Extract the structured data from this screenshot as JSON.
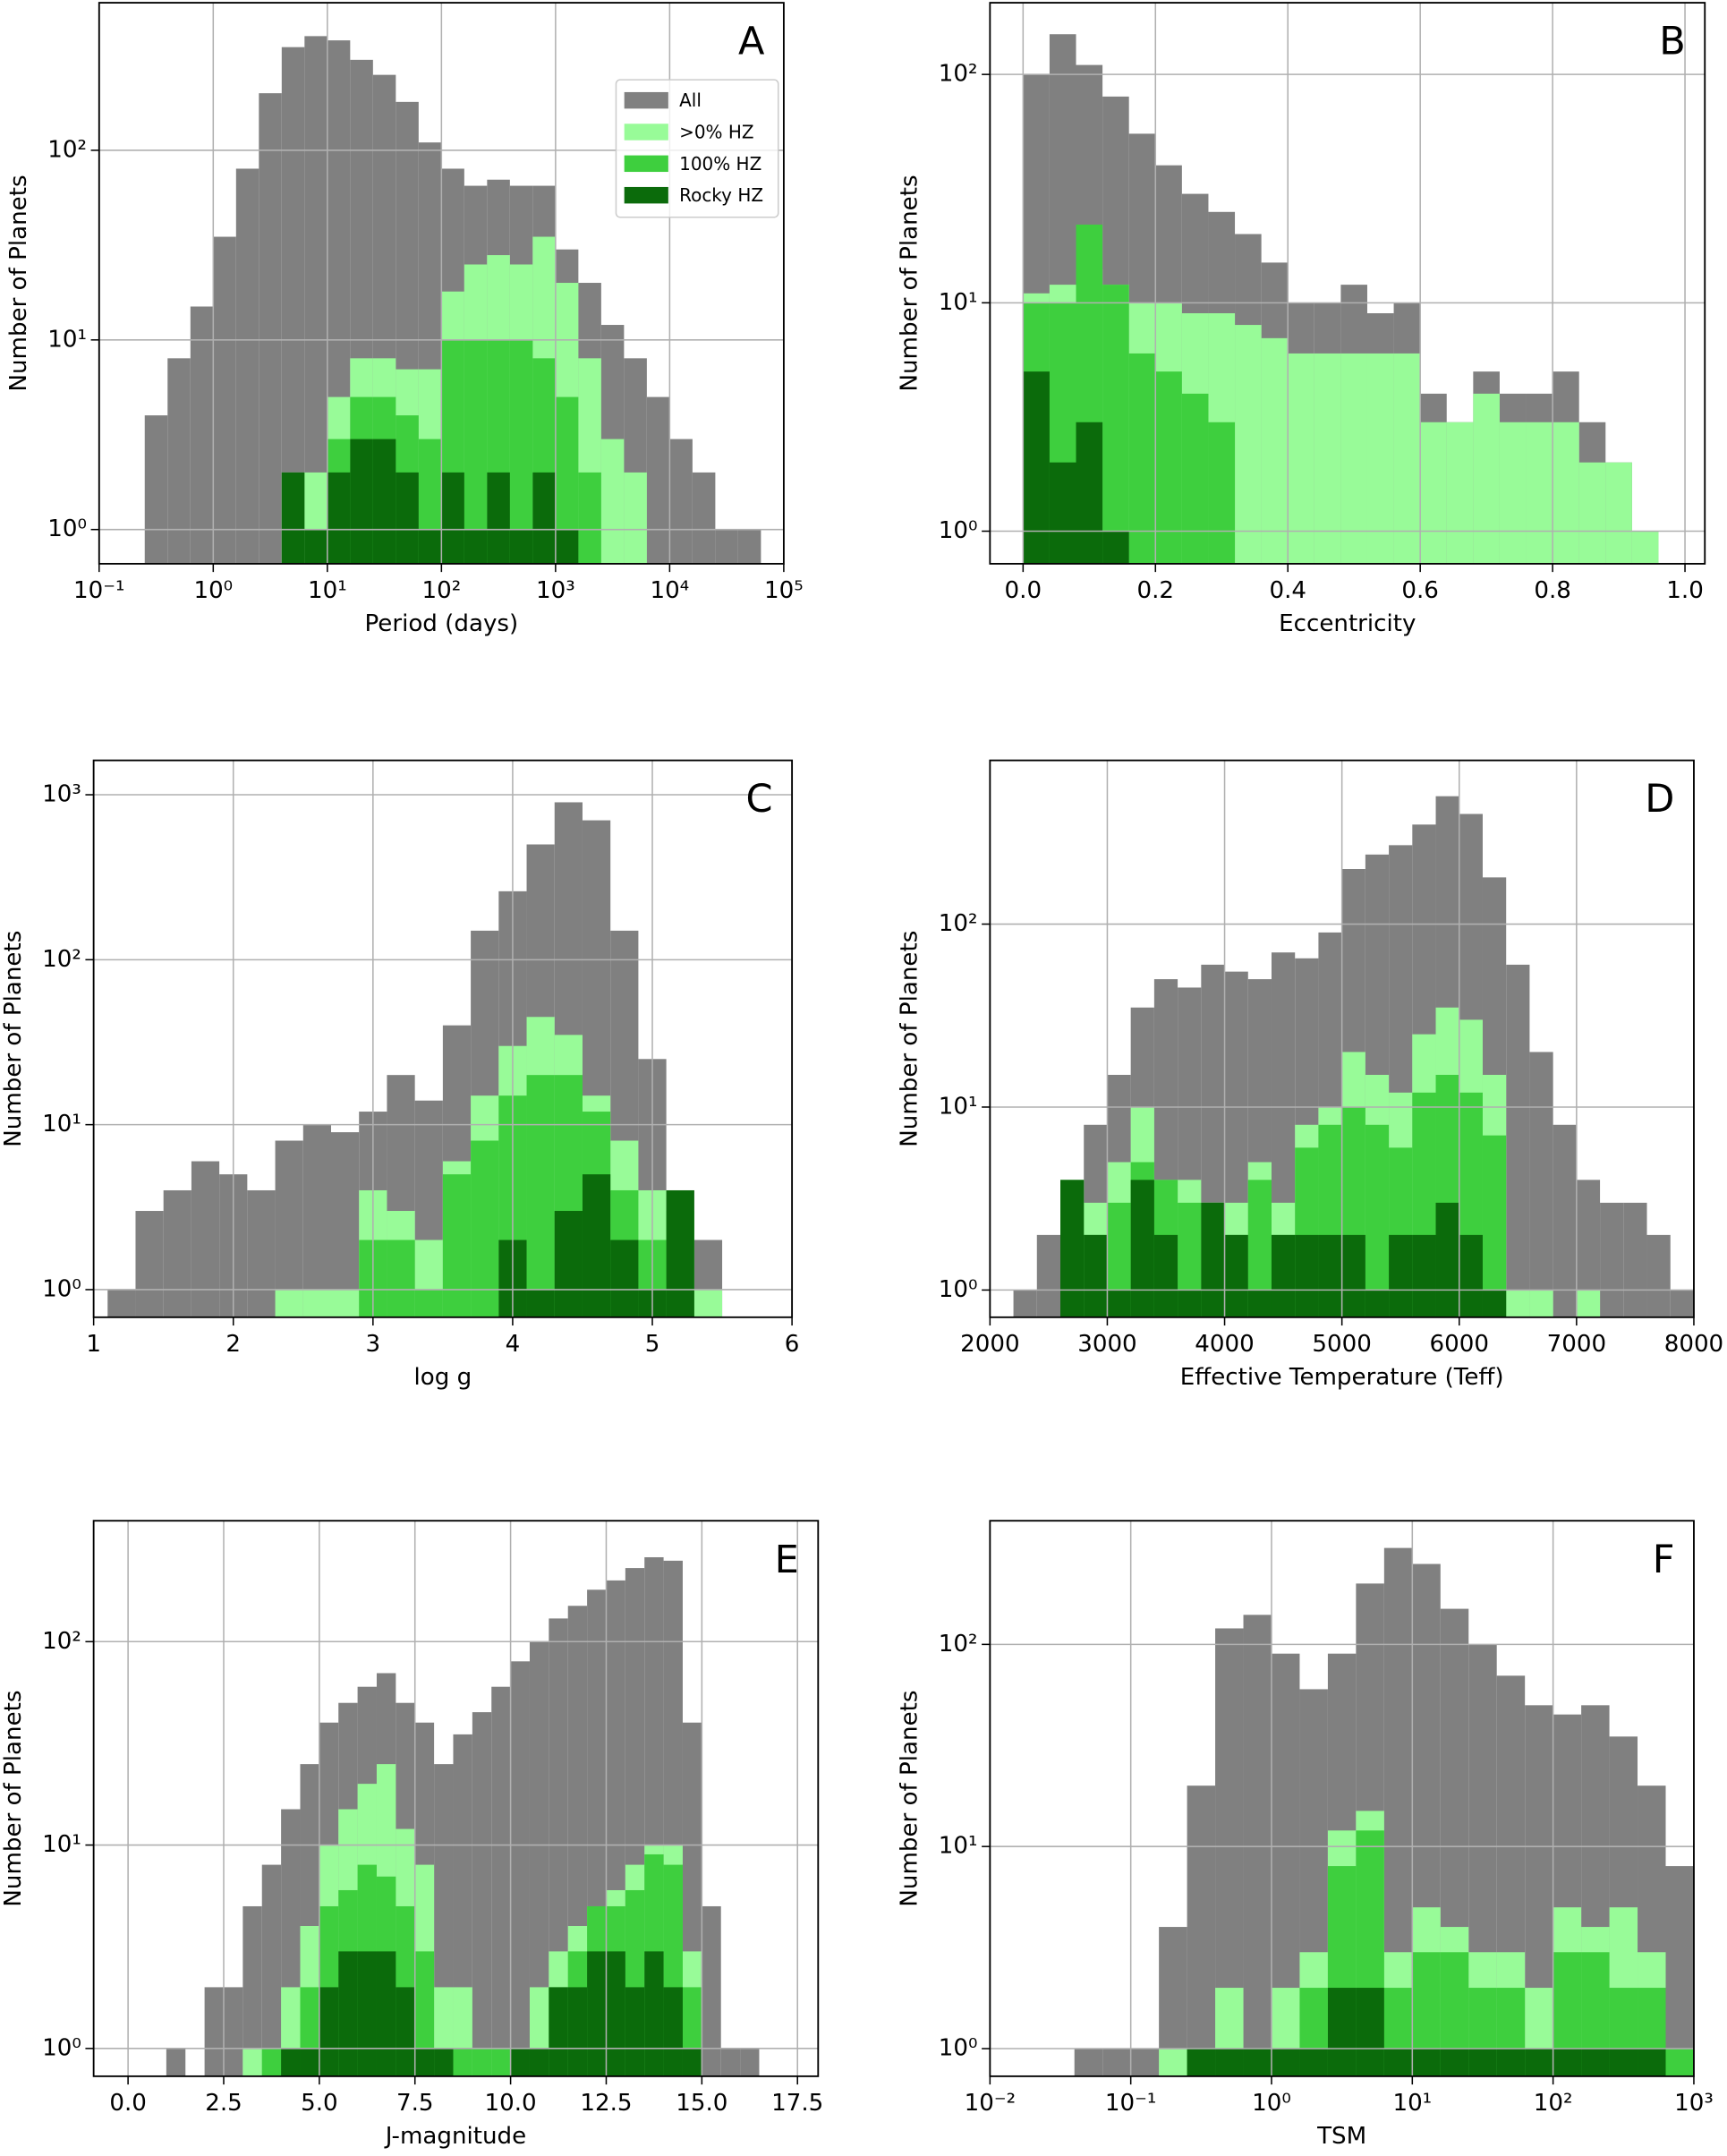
{
  "chart_data": [
    {
      "type": "histogram",
      "panel_label": "A",
      "xlabel": "Period (days)",
      "ylabel": "Number of Planets",
      "xscale": "log",
      "yscale": "log",
      "grid": true,
      "legend": "upper right",
      "xlim": [
        0.1,
        100000
      ],
      "ylim": [
        0.66,
        600
      ],
      "xticks": [
        {
          "value": 0.1,
          "label": "10⁻¹"
        },
        {
          "value": 1,
          "label": "10⁰"
        },
        {
          "value": 10,
          "label": "10¹"
        },
        {
          "value": 100,
          "label": "10²"
        },
        {
          "value": 1000,
          "label": "10³"
        },
        {
          "value": 10000,
          "label": "10⁴"
        },
        {
          "value": 100000,
          "label": "10⁵"
        }
      ],
      "yticks": [
        {
          "value": 1,
          "label": "10⁰"
        },
        {
          "value": 10,
          "label": "10¹"
        },
        {
          "value": 100,
          "label": "10²"
        }
      ],
      "bins": [
        0.251,
        0.398,
        0.631,
        1,
        1.585,
        2.512,
        3.981,
        6.31,
        10,
        15.85,
        25.12,
        39.81,
        63.1,
        100,
        158.5,
        251.2,
        398.1,
        631,
        1000,
        1585,
        2512,
        3981,
        6310,
        10000,
        15850,
        25120,
        39810,
        63100
      ],
      "series": [
        {
          "name": "All",
          "color": "#808080",
          "values": [
            4,
            8,
            15,
            35,
            80,
            200,
            350,
            400,
            380,
            300,
            250,
            180,
            110,
            80,
            65,
            70,
            65,
            65,
            30,
            20,
            12,
            8,
            5,
            3,
            2,
            1,
            1
          ]
        },
        {
          "name": ">0% HZ",
          "color": "#98fb98",
          "values": [
            null,
            null,
            null,
            null,
            null,
            null,
            2,
            2,
            5,
            8,
            8,
            7,
            7,
            18,
            25,
            28,
            25,
            35,
            20,
            8,
            3,
            2,
            null,
            null,
            null,
            null,
            null
          ]
        },
        {
          "name": "100% HZ",
          "color": "#3ecf3e",
          "values": [
            null,
            null,
            null,
            null,
            null,
            null,
            null,
            null,
            3,
            5,
            5,
            4,
            3,
            10,
            10,
            10,
            10,
            8,
            5,
            2,
            null,
            null,
            null,
            null,
            null,
            null,
            null
          ]
        },
        {
          "name": "Rocky HZ",
          "color": "#0b6b0b",
          "values": [
            null,
            null,
            null,
            null,
            null,
            null,
            2,
            1,
            2,
            3,
            3,
            2,
            1,
            2,
            1,
            2,
            1,
            2,
            1,
            null,
            null,
            null,
            null,
            null,
            null,
            null,
            null
          ]
        }
      ]
    },
    {
      "type": "histogram",
      "panel_label": "B",
      "xlabel": "Eccentricity",
      "ylabel": "Number of Planets",
      "yscale": "log",
      "grid": true,
      "xlim": [
        -0.05,
        1.03
      ],
      "ylim": [
        0.72,
        206
      ],
      "xticks": [
        {
          "value": 0,
          "label": "0.0"
        },
        0.2,
        0.4,
        0.6,
        0.8,
        {
          "value": 1,
          "label": "1.0"
        }
      ],
      "yticks": [
        {
          "value": 1,
          "label": "10⁰"
        },
        {
          "value": 10,
          "label": "10¹"
        },
        {
          "value": 100,
          "label": "10²"
        }
      ],
      "bins": [
        0,
        0.04,
        0.08,
        0.12,
        0.16,
        0.2,
        0.24,
        0.28,
        0.32,
        0.36,
        0.4,
        0.44,
        0.48,
        0.52,
        0.56,
        0.6,
        0.64,
        0.68,
        0.72,
        0.76,
        0.8,
        0.84,
        0.88,
        0.92,
        0.96,
        1
      ],
      "series": [
        {
          "color": "#808080",
          "values": [
            100,
            150,
            110,
            80,
            55,
            40,
            30,
            25,
            20,
            15,
            10,
            10,
            12,
            9,
            10,
            4,
            3,
            5,
            4,
            4,
            5,
            3,
            2,
            1,
            null
          ]
        },
        {
          "color": "#98fb98",
          "values": [
            11,
            12,
            14,
            12,
            10,
            10,
            9,
            9,
            8,
            7,
            6,
            6,
            6,
            6,
            6,
            3,
            3,
            4,
            3,
            3,
            3,
            2,
            2,
            1,
            null
          ]
        },
        {
          "color": "#3ecf3e",
          "values": [
            10,
            10,
            22,
            12,
            6,
            5,
            4,
            3,
            null,
            null,
            null,
            null,
            null,
            null,
            null,
            null,
            null,
            null,
            null,
            null,
            null,
            null,
            null,
            null,
            null
          ]
        },
        {
          "color": "#0b6b0b",
          "values": [
            5,
            2,
            3,
            1,
            null,
            null,
            null,
            null,
            null,
            null,
            null,
            null,
            null,
            null,
            null,
            null,
            null,
            null,
            null,
            null,
            null,
            null,
            null,
            null,
            null
          ]
        }
      ]
    },
    {
      "type": "histogram",
      "panel_label": "C",
      "xlabel": "log g",
      "ylabel": "Number of Planets",
      "yscale": "log",
      "grid": true,
      "xlim": [
        1,
        6
      ],
      "ylim": [
        0.68,
        1616
      ],
      "xticks": [
        1,
        2,
        3,
        4,
        5,
        6
      ],
      "yticks": [
        {
          "value": 1,
          "label": "10⁰"
        },
        {
          "value": 10,
          "label": "10¹"
        },
        {
          "value": 100,
          "label": "10²"
        },
        {
          "value": 1000,
          "label": "10³"
        }
      ],
      "bins": [
        1.1,
        1.3,
        1.5,
        1.7,
        1.9,
        2.1,
        2.3,
        2.5,
        2.7,
        2.9,
        3.1,
        3.3,
        3.5,
        3.7,
        3.9,
        4.1,
        4.3,
        4.5,
        4.7,
        4.9,
        5.1,
        5.3,
        5.5
      ],
      "series": [
        {
          "color": "#808080",
          "values": [
            1,
            3,
            4,
            6,
            5,
            4,
            8,
            10,
            9,
            12,
            20,
            14,
            40,
            150,
            260,
            500,
            900,
            700,
            150,
            25,
            4,
            2
          ]
        },
        {
          "color": "#98fb98",
          "values": [
            null,
            null,
            null,
            null,
            null,
            null,
            1,
            1,
            1,
            4,
            3,
            2,
            6,
            15,
            30,
            45,
            35,
            15,
            8,
            4,
            3,
            1
          ]
        },
        {
          "color": "#3ecf3e",
          "values": [
            null,
            null,
            null,
            null,
            null,
            null,
            null,
            null,
            null,
            2,
            2,
            1,
            5,
            8,
            15,
            20,
            20,
            12,
            4,
            2,
            3,
            null
          ]
        },
        {
          "color": "#0b6b0b",
          "values": [
            null,
            null,
            null,
            null,
            null,
            null,
            null,
            null,
            null,
            null,
            null,
            null,
            null,
            null,
            2,
            1,
            3,
            5,
            2,
            1,
            4,
            null
          ]
        }
      ]
    },
    {
      "type": "histogram",
      "panel_label": "D",
      "xlabel": "Effective Temperature (Teff)",
      "ylabel": "Number of Planets",
      "yscale": "log",
      "grid": true,
      "xlim": [
        2000,
        8000
      ],
      "ylim": [
        0.71,
        785
      ],
      "xticks": [
        2000,
        3000,
        4000,
        5000,
        6000,
        7000,
        8000
      ],
      "yticks": [
        {
          "value": 1,
          "label": "10⁰"
        },
        {
          "value": 10,
          "label": "10¹"
        },
        {
          "value": 100,
          "label": "10²"
        }
      ],
      "bins": [
        2200,
        2400,
        2600,
        2800,
        3000,
        3200,
        3400,
        3600,
        3800,
        4000,
        4200,
        4400,
        4600,
        4800,
        5000,
        5200,
        5400,
        5600,
        5800,
        6000,
        6200,
        6400,
        6600,
        6800,
        7000,
        7200,
        7400,
        7600,
        7800,
        8000
      ],
      "series": [
        {
          "color": "#808080",
          "values": [
            1,
            2,
            3,
            8,
            15,
            35,
            50,
            45,
            60,
            55,
            50,
            70,
            65,
            90,
            200,
            240,
            270,
            350,
            500,
            400,
            180,
            60,
            20,
            8,
            4,
            3,
            3,
            2,
            1
          ]
        },
        {
          "color": "#98fb98",
          "values": [
            null,
            null,
            3,
            3,
            5,
            10,
            4,
            4,
            3,
            3,
            5,
            3,
            8,
            10,
            20,
            15,
            12,
            25,
            35,
            30,
            15,
            1,
            1,
            null,
            1,
            null,
            null,
            null,
            null
          ]
        },
        {
          "color": "#3ecf3e",
          "values": [
            null,
            null,
            4,
            2,
            3,
            5,
            4,
            3,
            3,
            2,
            4,
            2,
            6,
            8,
            10,
            8,
            6,
            12,
            15,
            12,
            7,
            null,
            null,
            null,
            null,
            null,
            null,
            null,
            null
          ]
        },
        {
          "color": "#0b6b0b",
          "values": [
            null,
            null,
            4,
            2,
            1,
            4,
            2,
            1,
            3,
            2,
            1,
            2,
            2,
            2,
            2,
            1,
            2,
            2,
            3,
            2,
            1,
            null,
            null,
            null,
            null,
            null,
            null,
            null,
            null
          ]
        }
      ]
    },
    {
      "type": "histogram",
      "panel_label": "E",
      "xlabel": "J-magnitude",
      "ylabel": "Number of Planets",
      "yscale": "log",
      "grid": true,
      "xlim": [
        -0.9,
        18.04
      ],
      "ylim": [
        0.73,
        393
      ],
      "xticks": [
        {
          "value": 0,
          "label": "0.0"
        },
        2.5,
        {
          "value": 5,
          "label": "5.0"
        },
        7.5,
        {
          "value": 10,
          "label": "10.0"
        },
        12.5,
        {
          "value": 15,
          "label": "15.0"
        },
        17.5
      ],
      "yticks": [
        {
          "value": 1,
          "label": "10⁰"
        },
        {
          "value": 10,
          "label": "10¹"
        },
        {
          "value": 100,
          "label": "10²"
        }
      ],
      "bins": [
        1,
        1.5,
        2,
        2.5,
        3,
        3.5,
        4,
        4.5,
        5,
        5.5,
        6,
        6.5,
        7,
        7.5,
        8,
        8.5,
        9,
        9.5,
        10,
        10.5,
        11,
        11.5,
        12,
        12.5,
        13,
        13.5,
        14,
        14.5,
        15,
        15.5,
        16,
        16.5
      ],
      "series": [
        {
          "color": "#808080",
          "values": [
            1,
            null,
            2,
            2,
            5,
            8,
            15,
            25,
            40,
            50,
            60,
            70,
            50,
            40,
            25,
            35,
            45,
            60,
            80,
            100,
            130,
            150,
            180,
            200,
            230,
            260,
            250,
            40,
            5,
            1,
            1
          ]
        },
        {
          "color": "#98fb98",
          "values": [
            null,
            null,
            null,
            null,
            1,
            1,
            2,
            4,
            10,
            15,
            20,
            25,
            12,
            8,
            2,
            2,
            1,
            1,
            1,
            2,
            3,
            4,
            5,
            6,
            8,
            10,
            10,
            3,
            null,
            null,
            null
          ]
        },
        {
          "color": "#3ecf3e",
          "values": [
            null,
            null,
            null,
            null,
            null,
            1,
            1,
            2,
            5,
            6,
            8,
            7,
            5,
            3,
            1,
            1,
            1,
            1,
            1,
            1,
            2,
            3,
            5,
            5,
            6,
            9,
            8,
            2,
            null,
            null,
            null
          ]
        },
        {
          "color": "#0b6b0b",
          "values": [
            null,
            null,
            null,
            null,
            null,
            null,
            1,
            1,
            2,
            3,
            3,
            3,
            2,
            1,
            1,
            null,
            null,
            null,
            1,
            1,
            2,
            2,
            3,
            3,
            2,
            3,
            2,
            1,
            null,
            null,
            null
          ]
        }
      ]
    },
    {
      "type": "histogram",
      "panel_label": "F",
      "xlabel": "TSM",
      "ylabel": "Number of Planets",
      "xscale": "log",
      "yscale": "log",
      "grid": true,
      "xlim": [
        0.01,
        1000
      ],
      "ylim": [
        0.73,
        409
      ],
      "xticks": [
        {
          "value": 0.01,
          "label": "10⁻²"
        },
        {
          "value": 0.1,
          "label": "10⁻¹"
        },
        {
          "value": 1,
          "label": "10⁰"
        },
        {
          "value": 10,
          "label": "10¹"
        },
        {
          "value": 100,
          "label": "10²"
        },
        {
          "value": 1000,
          "label": "10³"
        }
      ],
      "yticks": [
        {
          "value": 1,
          "label": "10⁰"
        },
        {
          "value": 10,
          "label": "10¹"
        },
        {
          "value": 100,
          "label": "10²"
        }
      ],
      "bins": [
        0.0398,
        0.0631,
        0.1,
        0.1585,
        0.2512,
        0.3981,
        0.631,
        1,
        1.585,
        2.512,
        3.981,
        6.31,
        10,
        15.85,
        25.12,
        39.81,
        63.1,
        100,
        158.5,
        251.2,
        398.1,
        631,
        1000
      ],
      "series": [
        {
          "color": "#808080",
          "values": [
            1,
            1,
            1,
            4,
            20,
            120,
            140,
            90,
            60,
            90,
            200,
            300,
            250,
            150,
            100,
            70,
            50,
            45,
            50,
            35,
            20,
            8
          ]
        },
        {
          "color": "#98fb98",
          "values": [
            null,
            null,
            null,
            1,
            1,
            2,
            1,
            2,
            3,
            12,
            15,
            3,
            5,
            4,
            3,
            3,
            2,
            5,
            4,
            5,
            3,
            1
          ]
        },
        {
          "color": "#3ecf3e",
          "values": [
            null,
            null,
            null,
            null,
            1,
            1,
            1,
            1,
            2,
            8,
            12,
            2,
            3,
            3,
            2,
            2,
            1,
            3,
            3,
            2,
            2,
            1
          ]
        },
        {
          "color": "#0b6b0b",
          "values": [
            null,
            null,
            null,
            null,
            1,
            1,
            1,
            1,
            1,
            2,
            2,
            1,
            1,
            1,
            1,
            1,
            1,
            1,
            1,
            1,
            1,
            null
          ]
        }
      ]
    }
  ]
}
